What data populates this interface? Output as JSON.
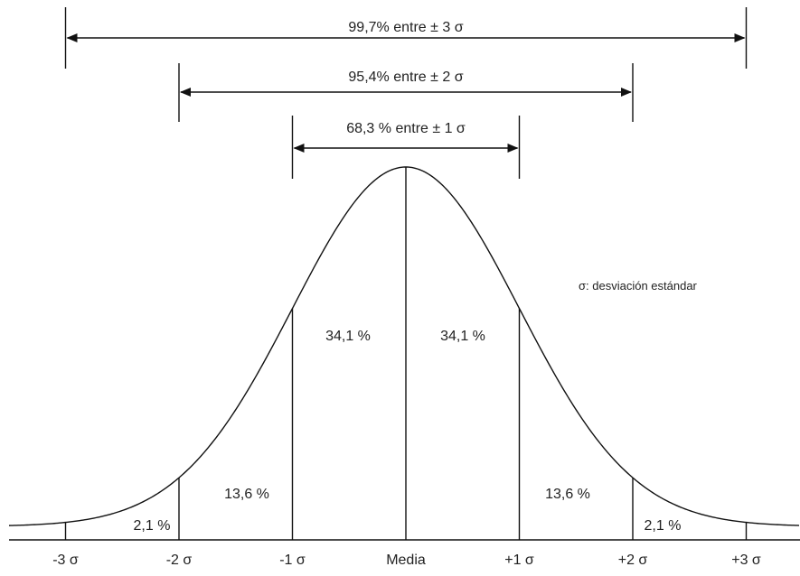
{
  "ranges": [
    {
      "label": "99,7% entre ± 3 σ",
      "from": -3,
      "to": 3
    },
    {
      "label": "95,4% entre ± 2 σ",
      "from": -2,
      "to": 2
    },
    {
      "label": "68,3 % entre ± 1 σ",
      "from": -1,
      "to": 1
    }
  ],
  "regions": [
    {
      "label": "2,1 %",
      "sigma_center": -2.5
    },
    {
      "label": "13,6 %",
      "sigma_center": -1.5
    },
    {
      "label": "34,1 %",
      "sigma_center": -0.5
    },
    {
      "label": "34,1 %",
      "sigma_center": 0.5
    },
    {
      "label": "13,6 %",
      "sigma_center": 1.5
    },
    {
      "label": "2,1 %",
      "sigma_center": 2.5
    }
  ],
  "axis_ticks": [
    {
      "label": "-3 σ",
      "sigma": -3
    },
    {
      "label": "-2 σ",
      "sigma": -2
    },
    {
      "label": "-1 σ",
      "sigma": -1
    },
    {
      "label": "Media",
      "sigma": 0
    },
    {
      "label": "+1 σ",
      "sigma": 1
    },
    {
      "label": "+2 σ",
      "sigma": 2
    },
    {
      "label": "+3 σ",
      "sigma": 3
    }
  ],
  "legend_note": "σ: desviación estándar"
}
